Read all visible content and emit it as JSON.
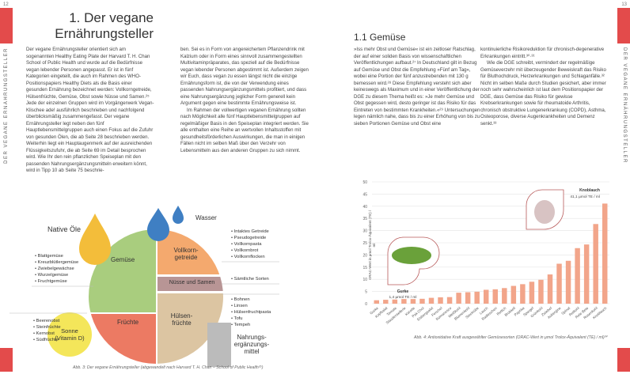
{
  "left_page": {
    "page_number": "12",
    "running_head": "DER VEGANE ERNÄHRUNGSTELLER",
    "title_line1": "1. Der vegane",
    "title_line2": "Ernährungsteller",
    "col1": "Der vegane Ernährungsteller orientiert sich am sogenannten Healthy Eating Plate der Harvard T. H. Chan School of Public Health und wurde auf die Bedürfnisse vegan lebender Personen angepasst. Er ist in fünf Kategorien eingeteilt, die auch im Rahmen des WHO-Positionspapiers Healthy Diets als die Basis einer gesunden Ernährung bezeichnet werden: Vollkorngetreide, Hülsenfrüchte, Gemüse, Obst sowie Nüsse und Samen.²⁵ Jede der einzelnen Gruppen wird im Vorgängerwerk Vegan-Klischee ade! ausführlich beschrieben und nachfolgend überblicksmäßig zusammengefasst. Der vegane Ernährungsteller legt neben den fünf Hauptlebensmittelgruppen auch einen Fokus auf die Zufuhr von gesunden Ölen, die ab Seite 28 beschrieben werden. Weiterhin liegt ein Hauptaugenmerk auf der ausreichenden Flüssigkeitszufuhr, die ab Seite 69 im Detail besprochen wird. Wie Ihr den rein pflanzlichen Speiseplan mit den passenden Nahrungsergänzungsmitteln erweitern könnt, wird in Tipp 10 ab Seite 75 beschrie-",
    "col2_p1": "ben. Sei es in Form von angereichertem Pflanzendrink mit Kalzium oder in Form eines sinnvoll zusammengestellten Multivitaminpräparates, das speziell auf die Bedürfnisse vegan lebender Personen abgestimmt ist. Außerdem zeigen wir Euch, dass vegan zu essen längst nicht die einzige Ernährungsform ist, die von der Verwendung eines passenden Nahrungsergänzungsmittels profitiert, und dass eine Nahrungsergänzung jeglicher Form generell kein Argument gegen eine bestimmte Ernährungsweise ist.",
    "col2_p2": "Im Rahmen der vollwertigen veganen Ernährung sollten nach Möglichkeit alle fünf Hauptlebensmittelgruppen auf regelmäßiger Basis in den Speiseplan integriert werden. Sie alle enthalten eine Reihe an wertvollen Inhaltsstoffen mit gesundheitsförderlichen Auswirkungen, die man in einigen Fällen nicht im selben Maß über den Verzehr von Lebensmitteln aus den anderen Gruppen zu sich nimmt.",
    "figure": {
      "oil": "Native Öle",
      "water": "Wasser",
      "vegetables": "Gemüse",
      "fruits": "Früchte",
      "grains_1": "Vollkorn-",
      "grains_2": "getreide",
      "nuts": "Nüsse und Samen",
      "legumes_1": "Hülsen-",
      "legumes_2": "früchte",
      "sun_1": "Sonne",
      "sun_2": "(Vitamin D)",
      "supp_1": "Nahrungs-",
      "supp_2": "ergänzungs-",
      "supp_3": "mittel",
      "veg_list": [
        "Blattgemüse",
        "Kreuzblütlergemüse",
        "Zwiebelgewächse",
        "Wurzelgemüse",
        "Fruchtgemüse"
      ],
      "fruit_list": [
        "Beerenobst",
        "Steinfrüchte",
        "Kernobst",
        "Südfrüchte"
      ],
      "grain_list": [
        "Intaktes Getreide",
        "Pseudogetreide",
        "Vollkornpasta",
        "Vollkornbrot",
        "Vollkornflocken"
      ],
      "nut_list": [
        "Sämtliche Sorten"
      ],
      "legume_list": [
        "Bohnen",
        "Linsen",
        "Hülsenfruchtpasta",
        "Tofu",
        "Tempeh"
      ],
      "caption": "Abb. 3: Der vegane Ernährungsteller (abgewandelt nach Harvard T. H. Chan – School of Public Health²⁶)"
    }
  },
  "right_page": {
    "page_number": "13",
    "running_head": "DER VEGANE ERNÄHRUNGSTELLER",
    "heading": "1.1 Gemüse",
    "col1": "»Iss mehr Obst und Gemüse« ist ein zeitloser Ratschlag, der auf einer soliden Basis von wissenschaftlichen Veröffentlichungen aufbaut.²⁷ In Deutschland gilt in Bezug auf Gemüse und Obst die Empfehlung »Fünf am Tag«, wobei eine Portion der fünf anzustrebenden mit 130 g bemessen wird.²⁸ Diese Empfehlung versteht sich aber keineswegs als Maximum und in einer Veröffentlichung der DGE zu diesem Thema heißt es: »Je mehr Gemüse und Obst gegessen wird, desto geringer ist das Risiko für das Eintreten von bestimmten Krankheiten.«²⁹ Untersuchungen legen nämlich nahe, dass bis zu einer Erhöhung von bis zu sieben Portionen Gemüse und Obst eine",
    "col2_p1": "kontinuierliche Risikoreduktion für chronisch-degenerative Erkrankungen eintritt.³⁰·³¹",
    "col2_p2": "Wie die DGE schreibt, vermindert der regelmäßige Gemüseverzehr mit überzeugender Beweiskraft das Risiko für Bluthochdruck, Herzerkrankungen und Schlaganfälle.³² Nicht im selben Maße durch Studien gesichert, aber immer noch sehr wahrscheinlich ist laut dem Positionspapier der DGE, dass Gemüse das Risiko für gewisse Krebserkrankungen sowie für rheumatoide Arthritis, chronisch obstruktive Lungenerkrankung (COPD), Asthma, Osteoporose, diverse Augenkrankheiten und Demenz senkt.³³",
    "caption": "Abb. 4: Antioxidative Kraft ausgewählter Gemüsesorten (ORAC-Wert in µmol Trolox-Äquivalent (TE) / ml)³⁴"
  },
  "chart_data": {
    "type": "bar",
    "ylabel": "ORAC-Wert in µmol Trolox-Äquivalent (TE) / ml",
    "ylim": [
      0,
      50
    ],
    "yticks": [
      "0",
      "5",
      "10",
      "15",
      "20",
      "25",
      "30",
      "35",
      "40",
      "45",
      "50"
    ],
    "grid": true,
    "categories": [
      "Gurke",
      "Kopfsalat",
      "Tomate",
      "Staudensellerie",
      "Karotte",
      "Pak Choi",
      "Eisbergsalat",
      "Fenchel",
      "Romanesco",
      "Weißkohl",
      "Blumenkohl",
      "Steckrübe",
      "Lauch",
      "Radieschen",
      "Rettich",
      "Brokkoli",
      "Paprika",
      "Spargel",
      "Grünkohl",
      "Zwiebel",
      "Aubergine",
      "Spinat",
      "Rotkohl",
      "Rote Bete",
      "Rosenkohl",
      "Knoblauch"
    ],
    "values": [
      1.4,
      1.6,
      1.7,
      1.9,
      1.9,
      2.0,
      2.4,
      2.6,
      2.7,
      4.5,
      4.7,
      4.9,
      5.7,
      5.9,
      6.4,
      7.3,
      8.0,
      9.0,
      9.8,
      12.0,
      16.4,
      17.6,
      22.8,
      24.3,
      32.7,
      41.1
    ],
    "bar_color": "#f2a58a",
    "annotations": [
      {
        "title": "Gurke",
        "text": "1,4 µmol TE / ml"
      },
      {
        "title": "Knoblauch",
        "text": "41,1 µmol TE / ml"
      }
    ]
  }
}
